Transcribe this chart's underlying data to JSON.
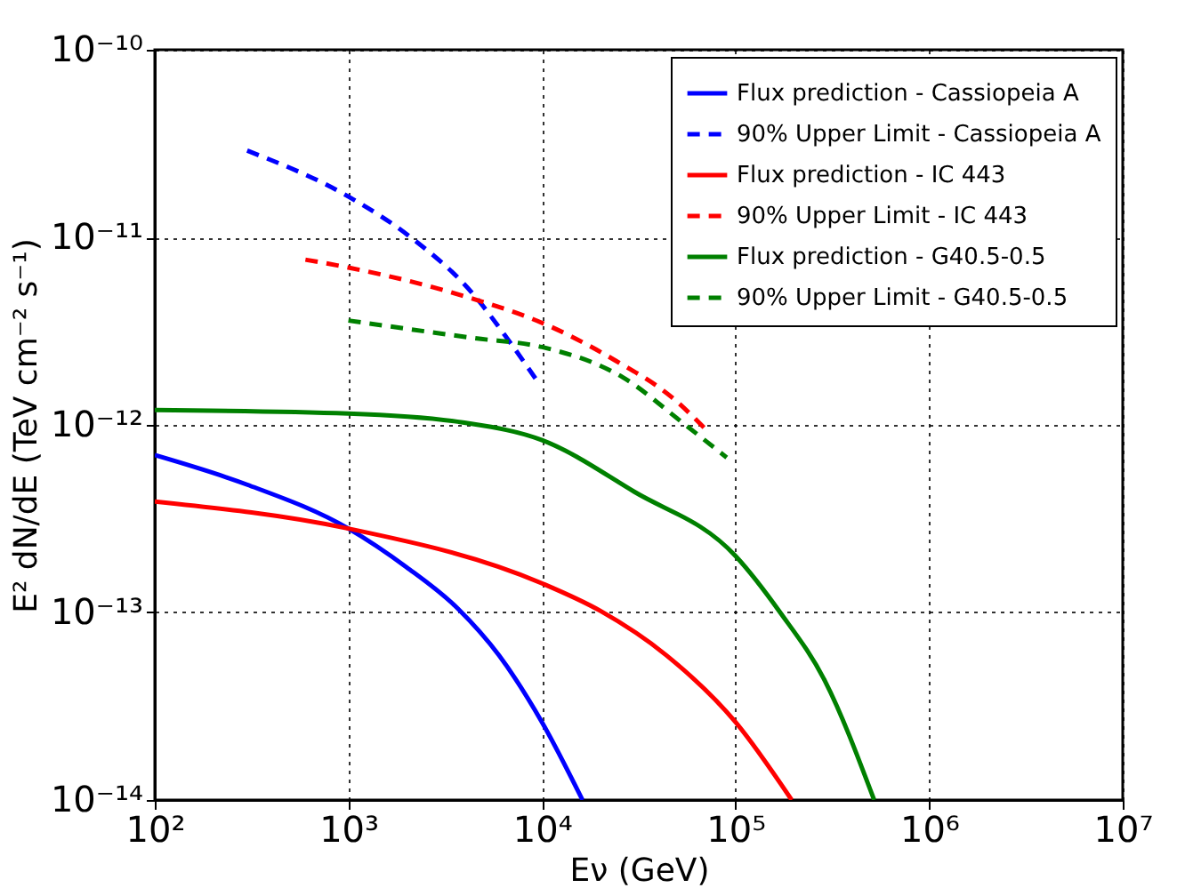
{
  "chart_data": {
    "type": "line",
    "xlabel": "Eν (GeV)",
    "ylabel": "E² dN/dE (TeV cm⁻² s⁻¹)",
    "log": "xy",
    "grid": true,
    "legend": "top right",
    "xlim": [
      100,
      10000000
    ],
    "ylim": [
      1e-14,
      1e-10
    ],
    "xticks": [
      {
        "value": 100,
        "label": "10²"
      },
      {
        "value": 1000,
        "label": "10³"
      },
      {
        "value": 10000,
        "label": "10⁴"
      },
      {
        "value": 100000,
        "label": "10⁵"
      },
      {
        "value": 1000000,
        "label": "10⁶"
      },
      {
        "value": 10000000,
        "label": "10⁷"
      }
    ],
    "yticks": [
      {
        "value": 1e-14,
        "label": "10⁻¹⁴"
      },
      {
        "value": 1e-13,
        "label": "10⁻¹³"
      },
      {
        "value": 1e-12,
        "label": "10⁻¹²"
      },
      {
        "value": 1e-11,
        "label": "10⁻¹¹"
      },
      {
        "value": 1e-10,
        "label": "10⁻¹⁰"
      }
    ],
    "series": [
      {
        "name": "Flux prediction - Cassiopeia A",
        "color": "#0000ff",
        "line_style": "solid",
        "x": [
          100,
          300,
          1000,
          2000,
          3670,
          6000,
          10000,
          16200
        ],
        "values": [
          6.9e-13,
          4.8e-13,
          2.8e-13,
          1.74e-13,
          1.05e-13,
          5.9e-14,
          2.6e-14,
          1e-14
        ]
      },
      {
        "name": "90% Upper Limit - Cassiopeia A",
        "color": "#0000ff",
        "line_style": "dashed",
        "x": [
          300,
          1000,
          2100,
          4400,
          6600,
          9500
        ],
        "values": [
          2.9e-11,
          1.65e-11,
          1e-11,
          5e-12,
          2.9e-12,
          1.7e-12
        ]
      },
      {
        "name": "Flux prediction - IC 443",
        "color": "#ff0000",
        "line_style": "solid",
        "x": [
          100,
          1000,
          10000,
          20000,
          44000,
          100000,
          195000
        ],
        "values": [
          3.9e-13,
          2.8e-13,
          1.43e-13,
          1.02e-13,
          5.9e-14,
          2.6e-14,
          1e-14
        ]
      },
      {
        "name": "90% Upper Limit - IC 443",
        "color": "#ff0000",
        "line_style": "dashed",
        "x": [
          600,
          1000,
          4400,
          10000,
          24000,
          47000,
          70000
        ],
        "values": [
          7.6e-12,
          6.9e-12,
          4.7e-12,
          3.5e-12,
          2.2e-12,
          1.4e-12,
          9.5e-13
        ]
      },
      {
        "name": "Flux prediction - G40.5-0.5",
        "color": "#008000",
        "line_style": "solid",
        "x": [
          100,
          1000,
          3900,
          10000,
          30000,
          100000,
          170000,
          290000,
          520000
        ],
        "values": [
          1.2e-12,
          1.15e-12,
          1.03e-12,
          8.3e-13,
          4.4e-13,
          2e-13,
          1e-13,
          4.3e-14,
          1e-14
        ]
      },
      {
        "name": "90% Upper Limit - G40.5-0.5",
        "color": "#008000",
        "line_style": "dashed",
        "x": [
          1000,
          4500,
          10000,
          26000,
          55000,
          90000
        ],
        "values": [
          3.6e-12,
          2.9e-12,
          2.6e-12,
          1.8e-12,
          1e-12,
          6.7e-13
        ]
      }
    ]
  }
}
